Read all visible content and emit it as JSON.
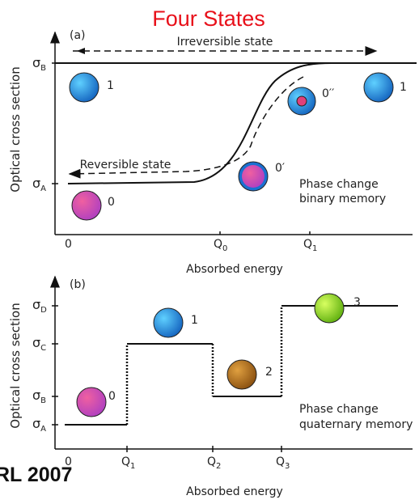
{
  "title": "Four States",
  "footer": "RL 2007",
  "panel_a": {
    "label": "(a)",
    "y_label": "Optical cross section",
    "x_label": "Absorbed energy",
    "y_ticks": [
      {
        "symbol": "σ",
        "sub": "B"
      },
      {
        "symbol": "σ",
        "sub": "A"
      }
    ],
    "x_ticks": [
      {
        "symbol": "0",
        "sub": ""
      },
      {
        "symbol": "Q",
        "sub": "0"
      },
      {
        "symbol": "Q",
        "sub": "1"
      }
    ],
    "arrows": [
      "Irreversible state",
      "Reversible state"
    ],
    "states": [
      "1",
      "1",
      "0′′",
      "0′",
      "0"
    ],
    "note": [
      "Phase change",
      "binary memory"
    ]
  },
  "panel_b": {
    "label": "(b)",
    "y_label": "Optical cross section",
    "x_label": "Absorbed energy",
    "y_ticks": [
      {
        "symbol": "σ",
        "sub": "D"
      },
      {
        "symbol": "σ",
        "sub": "C"
      },
      {
        "symbol": "σ",
        "sub": "B"
      },
      {
        "symbol": "σ",
        "sub": "A"
      }
    ],
    "x_ticks": [
      {
        "symbol": "0",
        "sub": ""
      },
      {
        "symbol": "Q",
        "sub": "1"
      },
      {
        "symbol": "Q",
        "sub": "2"
      },
      {
        "symbol": "Q",
        "sub": "3"
      }
    ],
    "states": [
      "0",
      "1",
      "2",
      "3"
    ],
    "note": [
      "Phase change",
      "quaternary memory"
    ]
  }
}
